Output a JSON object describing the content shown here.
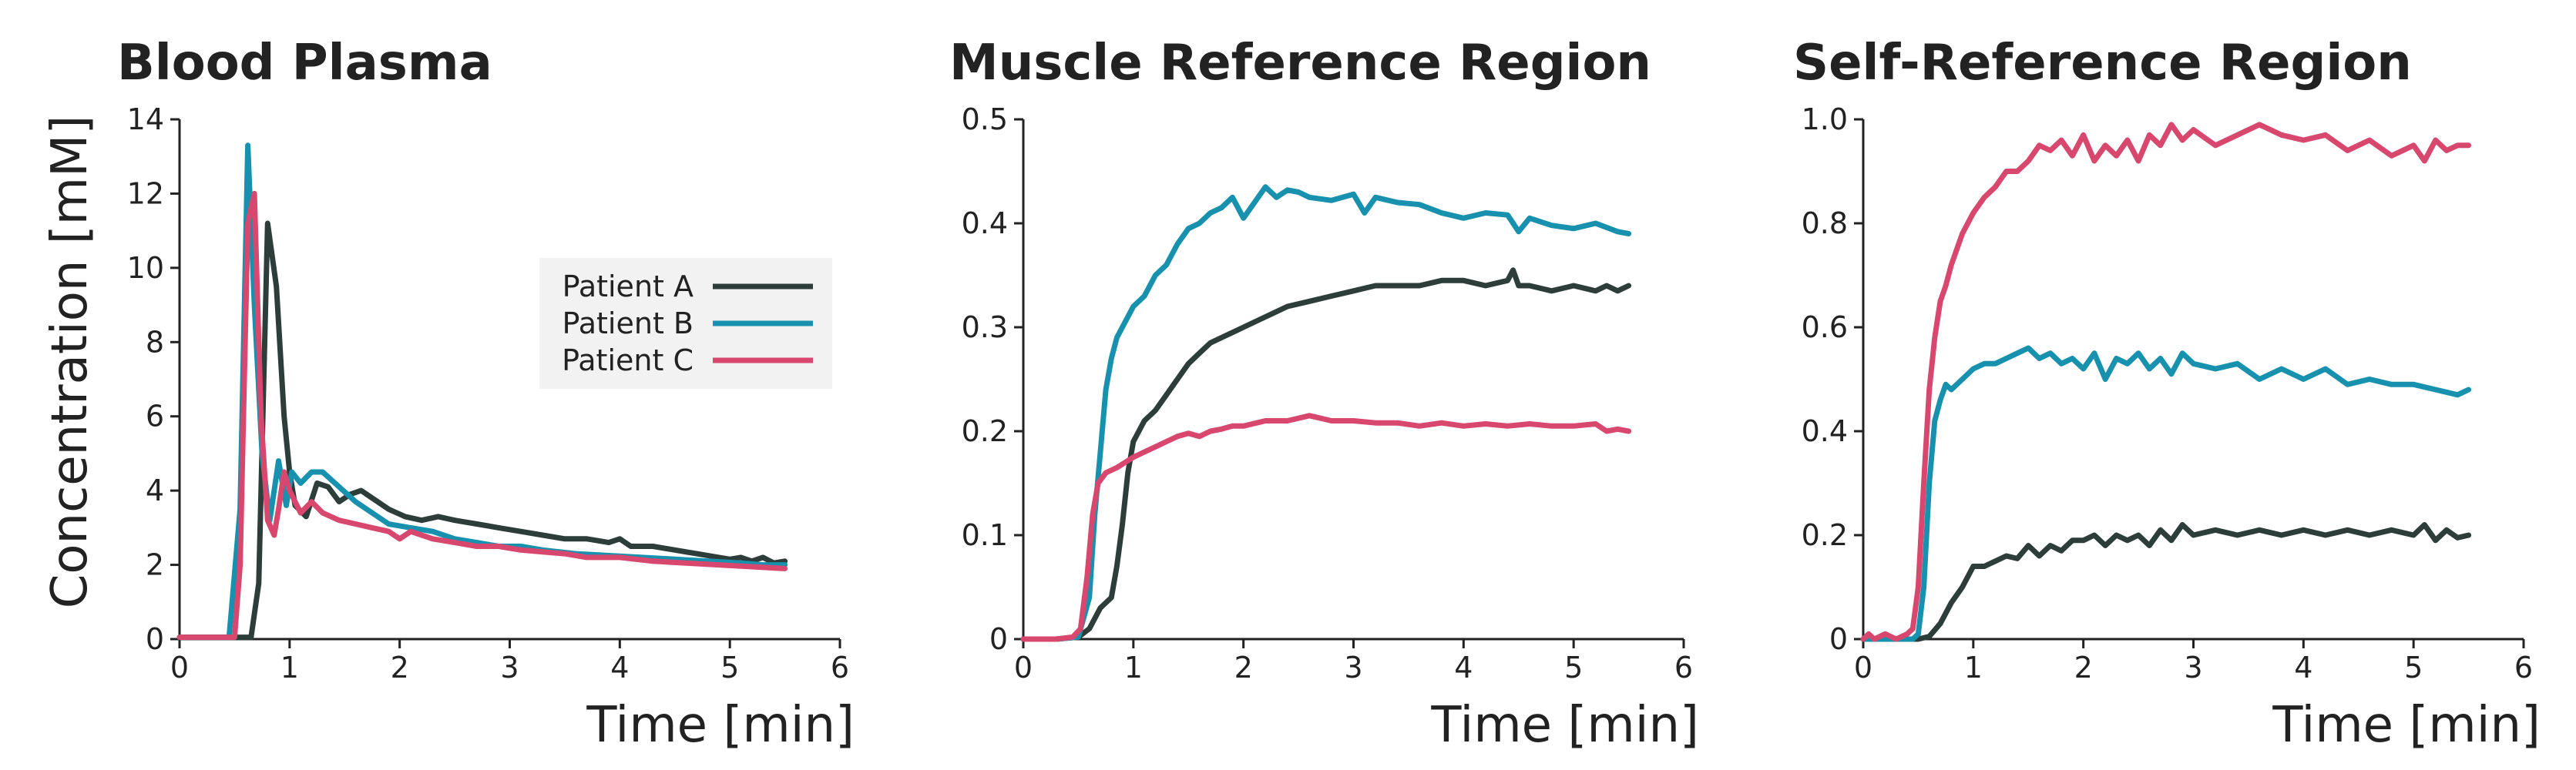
{
  "chart_data": [
    {
      "type": "line",
      "title": "Blood Plasma",
      "xlabel": "Time [min]",
      "ylabel": "Concentration [mM]",
      "xlim": [
        0,
        6
      ],
      "ylim": [
        0,
        14
      ],
      "xticks": [
        0,
        1,
        2,
        3,
        4,
        5,
        6
      ],
      "yticks": [
        0,
        2,
        4,
        6,
        8,
        10,
        12,
        14
      ],
      "ytick_labels": [
        "0",
        "2",
        "4",
        "6",
        "8",
        "10",
        "12",
        "14"
      ],
      "legend": "center-right",
      "grid": false,
      "series": [
        {
          "name": "Patient A",
          "color": "#2d3e3a",
          "x": [
            0,
            0.3,
            0.5,
            0.65,
            0.72,
            0.8,
            0.88,
            0.95,
            1.0,
            1.05,
            1.15,
            1.25,
            1.35,
            1.45,
            1.55,
            1.65,
            1.75,
            1.9,
            2.05,
            2.2,
            2.35,
            2.5,
            2.7,
            2.9,
            3.1,
            3.3,
            3.5,
            3.7,
            3.9,
            4.0,
            4.1,
            4.3,
            4.5,
            4.7,
            4.9,
            5.0,
            5.1,
            5.2,
            5.3,
            5.4,
            5.5
          ],
          "y": [
            0.05,
            0.05,
            0.05,
            0.05,
            1.5,
            11.2,
            9.5,
            6.0,
            4.5,
            3.6,
            3.3,
            4.2,
            4.1,
            3.7,
            3.9,
            4.0,
            3.8,
            3.5,
            3.3,
            3.2,
            3.3,
            3.2,
            3.1,
            3.0,
            2.9,
            2.8,
            2.7,
            2.7,
            2.6,
            2.7,
            2.5,
            2.5,
            2.4,
            2.3,
            2.2,
            2.15,
            2.2,
            2.1,
            2.2,
            2.05,
            2.1
          ]
        },
        {
          "name": "Patient B",
          "color": "#1791ad",
          "x": [
            0,
            0.3,
            0.45,
            0.55,
            0.62,
            0.68,
            0.75,
            0.82,
            0.9,
            0.97,
            1.02,
            1.1,
            1.2,
            1.3,
            1.45,
            1.6,
            1.75,
            1.9,
            2.1,
            2.3,
            2.5,
            2.7,
            2.9,
            3.1,
            3.3,
            3.6,
            3.9,
            4.2,
            4.5,
            4.8,
            5.1,
            5.3,
            5.5
          ],
          "y": [
            0.05,
            0.05,
            0.05,
            3.5,
            13.3,
            9.0,
            5.0,
            3.2,
            4.8,
            3.6,
            4.5,
            4.2,
            4.5,
            4.5,
            4.1,
            3.7,
            3.4,
            3.1,
            3.0,
            2.9,
            2.7,
            2.6,
            2.5,
            2.5,
            2.4,
            2.3,
            2.25,
            2.2,
            2.15,
            2.1,
            2.05,
            2.0,
            2.0
          ]
        },
        {
          "name": "Patient C",
          "color": "#d8476e",
          "x": [
            0,
            0.3,
            0.5,
            0.55,
            0.62,
            0.68,
            0.74,
            0.8,
            0.86,
            0.9,
            0.95,
            1.0,
            1.1,
            1.2,
            1.3,
            1.45,
            1.6,
            1.75,
            1.9,
            2.0,
            2.1,
            2.3,
            2.5,
            2.7,
            2.9,
            3.1,
            3.3,
            3.5,
            3.7,
            4.0,
            4.3,
            4.6,
            4.9,
            5.2,
            5.5
          ],
          "y": [
            0.05,
            0.05,
            0.05,
            2.0,
            11.2,
            12.0,
            6.0,
            3.2,
            2.8,
            3.5,
            4.5,
            4.0,
            3.4,
            3.7,
            3.4,
            3.2,
            3.1,
            3.0,
            2.9,
            2.7,
            2.9,
            2.7,
            2.6,
            2.5,
            2.5,
            2.4,
            2.35,
            2.3,
            2.2,
            2.2,
            2.1,
            2.05,
            2.0,
            1.95,
            1.9
          ]
        }
      ]
    },
    {
      "type": "line",
      "title": "Muscle Reference Region",
      "xlabel": "Time [min]",
      "ylabel": "",
      "xlim": [
        0,
        6
      ],
      "ylim": [
        0,
        0.5
      ],
      "xticks": [
        0,
        1,
        2,
        3,
        4,
        5,
        6
      ],
      "yticks": [
        0,
        0.1,
        0.2,
        0.3,
        0.4,
        0.5
      ],
      "ytick_labels": [
        "0",
        "0.1",
        "0.2",
        "0.3",
        "0.4",
        "0.5"
      ],
      "grid": false,
      "series": [
        {
          "name": "Patient A",
          "color": "#2d3e3a",
          "x": [
            0,
            0.3,
            0.5,
            0.6,
            0.7,
            0.8,
            0.85,
            0.9,
            0.95,
            1.0,
            1.1,
            1.2,
            1.3,
            1.4,
            1.5,
            1.6,
            1.7,
            1.8,
            1.9,
            2.0,
            2.2,
            2.4,
            2.6,
            2.8,
            3.0,
            3.2,
            3.4,
            3.6,
            3.8,
            4.0,
            4.2,
            4.4,
            4.45,
            4.5,
            4.6,
            4.8,
            5.0,
            5.2,
            5.3,
            5.4,
            5.5
          ],
          "y": [
            0.0,
            0.0,
            0.002,
            0.01,
            0.03,
            0.04,
            0.07,
            0.11,
            0.16,
            0.19,
            0.21,
            0.22,
            0.235,
            0.25,
            0.265,
            0.275,
            0.285,
            0.29,
            0.295,
            0.3,
            0.31,
            0.32,
            0.325,
            0.33,
            0.335,
            0.34,
            0.34,
            0.34,
            0.345,
            0.345,
            0.34,
            0.345,
            0.355,
            0.34,
            0.34,
            0.335,
            0.34,
            0.335,
            0.34,
            0.335,
            0.34
          ]
        },
        {
          "name": "Patient B",
          "color": "#1791ad",
          "x": [
            0,
            0.3,
            0.5,
            0.6,
            0.65,
            0.7,
            0.75,
            0.8,
            0.85,
            0.9,
            1.0,
            1.1,
            1.2,
            1.3,
            1.4,
            1.5,
            1.6,
            1.7,
            1.8,
            1.9,
            2.0,
            2.1,
            2.2,
            2.3,
            2.4,
            2.5,
            2.6,
            2.8,
            3.0,
            3.1,
            3.2,
            3.4,
            3.6,
            3.8,
            4.0,
            4.2,
            4.4,
            4.5,
            4.6,
            4.8,
            5.0,
            5.2,
            5.4,
            5.5
          ],
          "y": [
            0.0,
            0.0,
            0.002,
            0.04,
            0.12,
            0.18,
            0.24,
            0.27,
            0.29,
            0.3,
            0.32,
            0.33,
            0.35,
            0.36,
            0.38,
            0.395,
            0.4,
            0.41,
            0.415,
            0.425,
            0.405,
            0.42,
            0.435,
            0.425,
            0.432,
            0.43,
            0.425,
            0.422,
            0.428,
            0.41,
            0.425,
            0.42,
            0.418,
            0.41,
            0.405,
            0.41,
            0.408,
            0.392,
            0.405,
            0.398,
            0.395,
            0.4,
            0.392,
            0.39
          ]
        },
        {
          "name": "Patient C",
          "color": "#d8476e",
          "x": [
            0,
            0.3,
            0.45,
            0.52,
            0.58,
            0.63,
            0.68,
            0.75,
            0.85,
            1.0,
            1.1,
            1.2,
            1.3,
            1.4,
            1.5,
            1.6,
            1.7,
            1.8,
            1.9,
            2.0,
            2.2,
            2.4,
            2.6,
            2.8,
            3.0,
            3.2,
            3.4,
            3.6,
            3.8,
            4.0,
            4.2,
            4.4,
            4.6,
            4.8,
            5.0,
            5.2,
            5.3,
            5.4,
            5.5
          ],
          "y": [
            0.0,
            0.0,
            0.002,
            0.01,
            0.06,
            0.12,
            0.15,
            0.16,
            0.165,
            0.175,
            0.18,
            0.185,
            0.19,
            0.195,
            0.198,
            0.195,
            0.2,
            0.202,
            0.205,
            0.205,
            0.21,
            0.21,
            0.215,
            0.21,
            0.21,
            0.208,
            0.208,
            0.205,
            0.208,
            0.205,
            0.207,
            0.205,
            0.207,
            0.205,
            0.205,
            0.207,
            0.2,
            0.202,
            0.2
          ]
        }
      ]
    },
    {
      "type": "line",
      "title": "Self-Reference Region",
      "xlabel": "Time [min]",
      "ylabel": "",
      "xlim": [
        0,
        6
      ],
      "ylim": [
        0,
        1.0
      ],
      "xticks": [
        0,
        1,
        2,
        3,
        4,
        5,
        6
      ],
      "yticks": [
        0,
        0.2,
        0.4,
        0.6,
        0.8,
        1.0
      ],
      "ytick_labels": [
        "0",
        "0.2",
        "0.4",
        "0.6",
        "0.8",
        "1.0"
      ],
      "grid": false,
      "series": [
        {
          "name": "Patient A",
          "color": "#2d3e3a",
          "x": [
            0,
            0.3,
            0.5,
            0.6,
            0.7,
            0.8,
            0.9,
            1.0,
            1.1,
            1.2,
            1.3,
            1.4,
            1.5,
            1.6,
            1.7,
            1.8,
            1.9,
            2.0,
            2.1,
            2.2,
            2.3,
            2.4,
            2.5,
            2.6,
            2.7,
            2.8,
            2.9,
            3.0,
            3.2,
            3.4,
            3.6,
            3.8,
            4.0,
            4.2,
            4.4,
            4.6,
            4.8,
            5.0,
            5.1,
            5.2,
            5.3,
            5.4,
            5.5
          ],
          "y": [
            0.0,
            0.0,
            0.0,
            0.005,
            0.03,
            0.07,
            0.1,
            0.14,
            0.14,
            0.15,
            0.16,
            0.155,
            0.18,
            0.16,
            0.18,
            0.17,
            0.19,
            0.19,
            0.2,
            0.18,
            0.2,
            0.19,
            0.2,
            0.18,
            0.21,
            0.19,
            0.22,
            0.2,
            0.21,
            0.2,
            0.21,
            0.2,
            0.21,
            0.2,
            0.21,
            0.2,
            0.21,
            0.2,
            0.22,
            0.19,
            0.21,
            0.195,
            0.2
          ]
        },
        {
          "name": "Patient B",
          "color": "#1791ad",
          "x": [
            0,
            0.3,
            0.45,
            0.5,
            0.55,
            0.6,
            0.65,
            0.7,
            0.75,
            0.8,
            0.9,
            1.0,
            1.1,
            1.2,
            1.3,
            1.4,
            1.5,
            1.6,
            1.7,
            1.8,
            1.9,
            2.0,
            2.1,
            2.2,
            2.3,
            2.4,
            2.5,
            2.6,
            2.7,
            2.8,
            2.9,
            3.0,
            3.2,
            3.4,
            3.6,
            3.8,
            4.0,
            4.2,
            4.4,
            4.6,
            4.8,
            5.0,
            5.2,
            5.4,
            5.5
          ],
          "y": [
            0.0,
            0.0,
            0.0,
            0.01,
            0.1,
            0.3,
            0.42,
            0.46,
            0.49,
            0.48,
            0.5,
            0.52,
            0.53,
            0.53,
            0.54,
            0.55,
            0.56,
            0.54,
            0.55,
            0.53,
            0.54,
            0.52,
            0.55,
            0.5,
            0.54,
            0.53,
            0.55,
            0.52,
            0.54,
            0.51,
            0.55,
            0.53,
            0.52,
            0.53,
            0.5,
            0.52,
            0.5,
            0.52,
            0.49,
            0.5,
            0.49,
            0.49,
            0.48,
            0.47,
            0.48
          ]
        },
        {
          "name": "Patient C",
          "color": "#d8476e",
          "x": [
            0,
            0.05,
            0.1,
            0.2,
            0.3,
            0.4,
            0.45,
            0.5,
            0.55,
            0.6,
            0.65,
            0.7,
            0.75,
            0.8,
            0.9,
            1.0,
            1.1,
            1.2,
            1.3,
            1.4,
            1.5,
            1.6,
            1.7,
            1.8,
            1.9,
            2.0,
            2.1,
            2.2,
            2.3,
            2.4,
            2.5,
            2.6,
            2.7,
            2.8,
            2.9,
            3.0,
            3.2,
            3.4,
            3.6,
            3.8,
            4.0,
            4.2,
            4.4,
            4.6,
            4.8,
            5.0,
            5.1,
            5.2,
            5.3,
            5.4,
            5.5
          ],
          "y": [
            0.0,
            0.01,
            0.0,
            0.01,
            0.0,
            0.01,
            0.02,
            0.1,
            0.3,
            0.48,
            0.58,
            0.65,
            0.68,
            0.72,
            0.78,
            0.82,
            0.85,
            0.87,
            0.9,
            0.9,
            0.92,
            0.95,
            0.94,
            0.96,
            0.93,
            0.97,
            0.92,
            0.95,
            0.93,
            0.96,
            0.92,
            0.97,
            0.95,
            0.99,
            0.96,
            0.98,
            0.95,
            0.97,
            0.99,
            0.97,
            0.96,
            0.97,
            0.94,
            0.96,
            0.93,
            0.95,
            0.92,
            0.96,
            0.94,
            0.95,
            0.95
          ]
        }
      ]
    }
  ]
}
